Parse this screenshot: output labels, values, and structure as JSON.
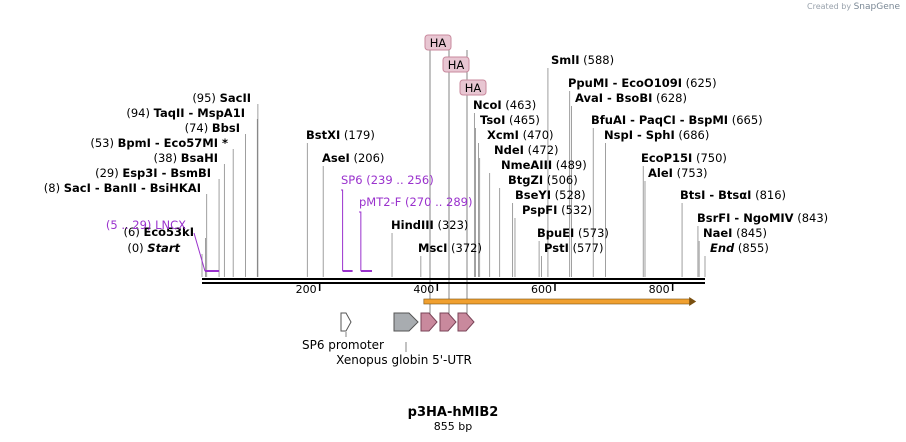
{
  "header": {
    "credit_prefix": "Created by",
    "credit_brand": "SnapGene"
  },
  "plasmid": {
    "name": "p3HA-hMIB2",
    "length_label": "855 bp",
    "length_bp": 855
  },
  "axis": {
    "ticks": [
      {
        "pos": 200,
        "label": "200"
      },
      {
        "pos": 400,
        "label": "400"
      },
      {
        "pos": 600,
        "label": "600"
      },
      {
        "pos": 800,
        "label": "800"
      }
    ]
  },
  "sites": [
    {
      "pos": 0,
      "left": "(0)",
      "label": "Start",
      "italic": true
    },
    {
      "pos": 6,
      "left": "(6)",
      "label": "Eco53kI"
    },
    {
      "pos": 8,
      "left": "(8)",
      "label": "SacI  -  BanII  -  BsiHKAI"
    },
    {
      "pos": 29,
      "left": "(29)",
      "label": "Esp3I  -  BsmBI"
    },
    {
      "pos": 38,
      "left": "(38)",
      "label": "BsaHI"
    },
    {
      "pos": 53,
      "left": "(53)",
      "label": "BpmI  -  Eco57MI *"
    },
    {
      "pos": 74,
      "left": "(74)",
      "label": "BbsI"
    },
    {
      "pos": 94,
      "left": "(94)",
      "label": "TaqII  -  MspA1I"
    },
    {
      "pos": 95,
      "left": "(95)",
      "label": "SacII"
    },
    {
      "pos": 179,
      "label": "BstXI",
      "right": "(179)"
    },
    {
      "pos": 206,
      "label": "AseI",
      "right": "(206)"
    },
    {
      "pos": 323,
      "label": "HindIII",
      "right": "(323)"
    },
    {
      "pos": 372,
      "label": "MscI",
      "right": "(372)"
    },
    {
      "pos": 463,
      "label": "NcoI",
      "right": "(463)"
    },
    {
      "pos": 465,
      "label": "TsoI",
      "right": "(465)"
    },
    {
      "pos": 470,
      "label": "XcmI",
      "right": "(470)"
    },
    {
      "pos": 472,
      "label": "NdeI",
      "right": "(472)"
    },
    {
      "pos": 489,
      "label": "NmeAIII",
      "right": "(489)"
    },
    {
      "pos": 506,
      "label": "BtgZI",
      "right": "(506)"
    },
    {
      "pos": 528,
      "label": "BseYI",
      "right": "(528)"
    },
    {
      "pos": 532,
      "label": "PspFI",
      "right": "(532)"
    },
    {
      "pos": 573,
      "label": "BpuEI",
      "right": "(573)"
    },
    {
      "pos": 577,
      "label": "PstI",
      "right": "(577)"
    },
    {
      "pos": 588,
      "label": "SmlI",
      "right": "(588)"
    },
    {
      "pos": 625,
      "label": "PpuMI  -  EcoO109I",
      "right": "(625)"
    },
    {
      "pos": 628,
      "label": "AvaI  -  BsoBI",
      "right": "(628)"
    },
    {
      "pos": 665,
      "label": "BfuAI  -  PaqCI  -  BspMI",
      "right": "(665)"
    },
    {
      "pos": 686,
      "label": "NspI  -  SphI",
      "right": "(686)"
    },
    {
      "pos": 750,
      "label": "EcoP15I",
      "right": "(750)"
    },
    {
      "pos": 753,
      "label": "AleI",
      "right": "(753)"
    },
    {
      "pos": 816,
      "label": "BtsI  -  BtsαI",
      "right": "(816)"
    },
    {
      "pos": 843,
      "label": "BsrFI  -  NgoMIV",
      "right": "(843)"
    },
    {
      "pos": 845,
      "label": "NaeI",
      "right": "(845)"
    },
    {
      "pos": 855,
      "label": "End",
      "right": "(855)",
      "italic": true
    }
  ],
  "primers": [
    {
      "name": "LNCX",
      "range": "(5 .. 29)",
      "start": 5,
      "end": 29,
      "side": "left"
    },
    {
      "name": "SP6",
      "range": "(239 .. 256)",
      "start": 239,
      "end": 256,
      "side": "right"
    },
    {
      "name": "pMT2-F",
      "range": "(270 .. 289)",
      "start": 270,
      "end": 289,
      "side": "right"
    }
  ],
  "ha_tags": [
    {
      "label": "HA",
      "pos": 390
    },
    {
      "label": "HA",
      "pos": 420
    },
    {
      "label": "HA",
      "pos": 450
    }
  ],
  "features": [
    {
      "name": "orf-arrow",
      "start": 372,
      "end": 840,
      "color": "#f0a030"
    },
    {
      "name": "SP6 promoter",
      "start": 239,
      "end": 256,
      "color": "#ffffff"
    },
    {
      "name": "Xenopus globin 5'-UTR",
      "start": 325,
      "end": 365,
      "color": "#a8acb0"
    },
    {
      "name": "HA",
      "start": 368,
      "end": 395,
      "color": "#c9899d"
    },
    {
      "name": "HA",
      "start": 398,
      "end": 425,
      "color": "#c9899d"
    },
    {
      "name": "HA",
      "start": 428,
      "end": 455,
      "color": "#c9899d"
    }
  ],
  "feature_labels": {
    "sp6_promoter": "SP6 promoter",
    "xenopus": "Xenopus globin 5'-UTR"
  },
  "colors": {
    "primer": "#9a32cd",
    "ha_fill": "#e8c6d2",
    "ha_stroke": "#c9899d",
    "backbone": "#000000",
    "orf": "#f0a030"
  }
}
